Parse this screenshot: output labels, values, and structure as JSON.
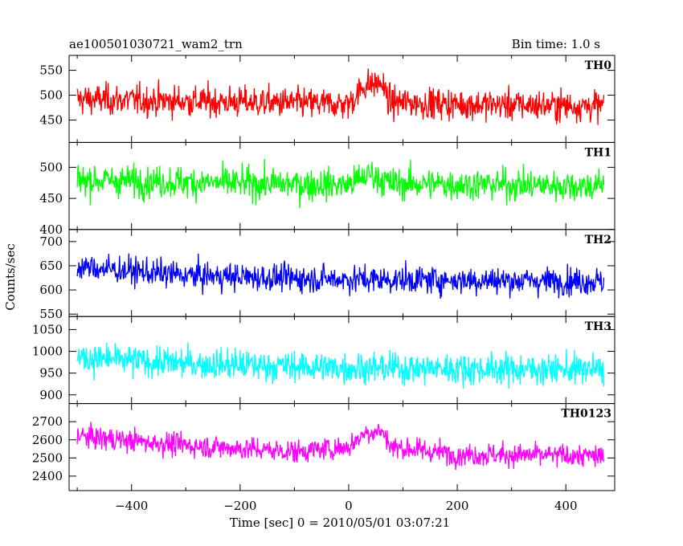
{
  "chart_data": {
    "type": "line",
    "title": "ae100501030721_wam2_trn",
    "bin_time_label": "Bin time: 1.0 s",
    "xlabel": "Time [sec] 0 = 2010/05/01 03:07:21",
    "ylabel": "Counts/sec",
    "xlim": [
      -515,
      490
    ],
    "x_ticks": [
      -400,
      -200,
      0,
      200,
      400
    ],
    "x_range_data": [
      -500,
      470
    ],
    "bin_time": 1.0,
    "panels": [
      {
        "name": "TH0",
        "color": "#ff0000",
        "ylim": [
          405,
          580
        ],
        "y_ticks": [
          450,
          500,
          550
        ],
        "baseline": [
          [
            -500,
            492
          ],
          [
            -300,
            488
          ],
          [
            -100,
            484
          ],
          [
            0,
            482
          ],
          [
            30,
            520
          ],
          [
            60,
            525
          ],
          [
            75,
            486
          ],
          [
            200,
            482
          ],
          [
            470,
            478
          ]
        ],
        "noise_sd": 22
      },
      {
        "name": "TH1",
        "color": "#00ff00",
        "ylim": [
          400,
          540
        ],
        "y_ticks": [
          400,
          450,
          500
        ],
        "baseline": [
          [
            -500,
            480
          ],
          [
            -200,
            474
          ],
          [
            0,
            472
          ],
          [
            40,
            490
          ],
          [
            75,
            474
          ],
          [
            470,
            470
          ]
        ],
        "noise_sd": 18
      },
      {
        "name": "TH2",
        "color": "#0000ff",
        "ylim": [
          545,
          725
        ],
        "y_ticks": [
          550,
          600,
          650,
          700
        ],
        "baseline": [
          [
            -500,
            648
          ],
          [
            -300,
            630
          ],
          [
            -100,
            624
          ],
          [
            0,
            622
          ],
          [
            470,
            618
          ]
        ],
        "noise_sd": 20
      },
      {
        "name": "TH3",
        "color": "#00ffff",
        "ylim": [
          880,
          1080
        ],
        "y_ticks": [
          900,
          950,
          1000,
          1050
        ],
        "baseline": [
          [
            -500,
            985
          ],
          [
            -300,
            972
          ],
          [
            0,
            962
          ],
          [
            470,
            958
          ]
        ],
        "noise_sd": 25
      },
      {
        "name": "TH0123",
        "color": "#ff00ff",
        "ylim": [
          2320,
          2800
        ],
        "y_ticks": [
          2400,
          2500,
          2600,
          2700
        ],
        "baseline": [
          [
            -500,
            2620
          ],
          [
            -300,
            2570
          ],
          [
            -100,
            2535
          ],
          [
            0,
            2560
          ],
          [
            30,
            2640
          ],
          [
            60,
            2650
          ],
          [
            80,
            2560
          ],
          [
            200,
            2520
          ],
          [
            470,
            2510
          ]
        ],
        "noise_sd": 45
      }
    ]
  }
}
